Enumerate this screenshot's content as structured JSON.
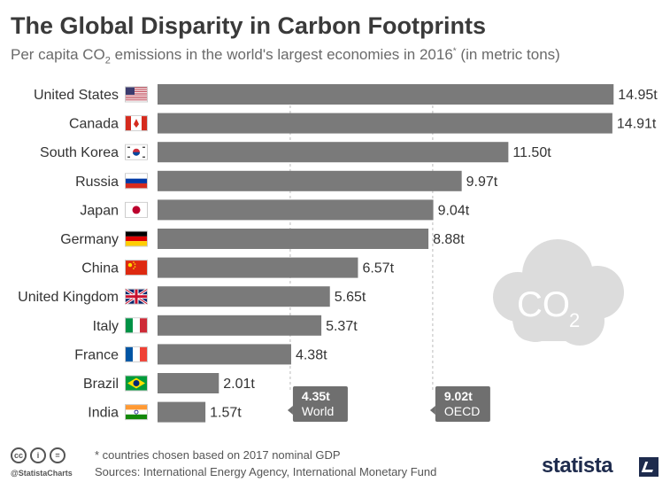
{
  "title": "The Global Disparity in Carbon Footprints",
  "subtitle": {
    "pre": "Per capita CO",
    "sub": "2",
    "mid": " emissions in the world's largest economies in 2016",
    "sup": "*",
    "post": " (in metric tons)"
  },
  "chart_data": {
    "type": "bar",
    "orientation": "horizontal",
    "categories": [
      "United States",
      "Canada",
      "South Korea",
      "Russia",
      "Japan",
      "Germany",
      "China",
      "United Kingdom",
      "Italy",
      "France",
      "Brazil",
      "India"
    ],
    "values": [
      14.95,
      14.91,
      11.5,
      9.97,
      9.04,
      8.88,
      6.57,
      5.65,
      5.37,
      4.38,
      2.01,
      1.57
    ],
    "value_labels": [
      "14.95t",
      "14.91t",
      "11.50t",
      "9.97t",
      "9.04t",
      "8.88t",
      "6.57t",
      "5.65t",
      "5.37t",
      "4.38t",
      "2.01t",
      "1.57t"
    ],
    "xlim": [
      0,
      15
    ],
    "bar_color": "#7a7a7a",
    "reference_lines": [
      {
        "name": "World",
        "value": 4.35,
        "label": "4.35t"
      },
      {
        "name": "OECD",
        "value": 9.02,
        "label": "9.02t"
      }
    ]
  },
  "decoration": {
    "cloud_text": "CO",
    "cloud_sub": "2"
  },
  "footer": {
    "note": "* countries chosen based on 2017 nominal GDP",
    "sources": "Sources: International Energy Agency, International Monetary Fund",
    "handle": "@StatistaCharts",
    "brand": "statista"
  }
}
